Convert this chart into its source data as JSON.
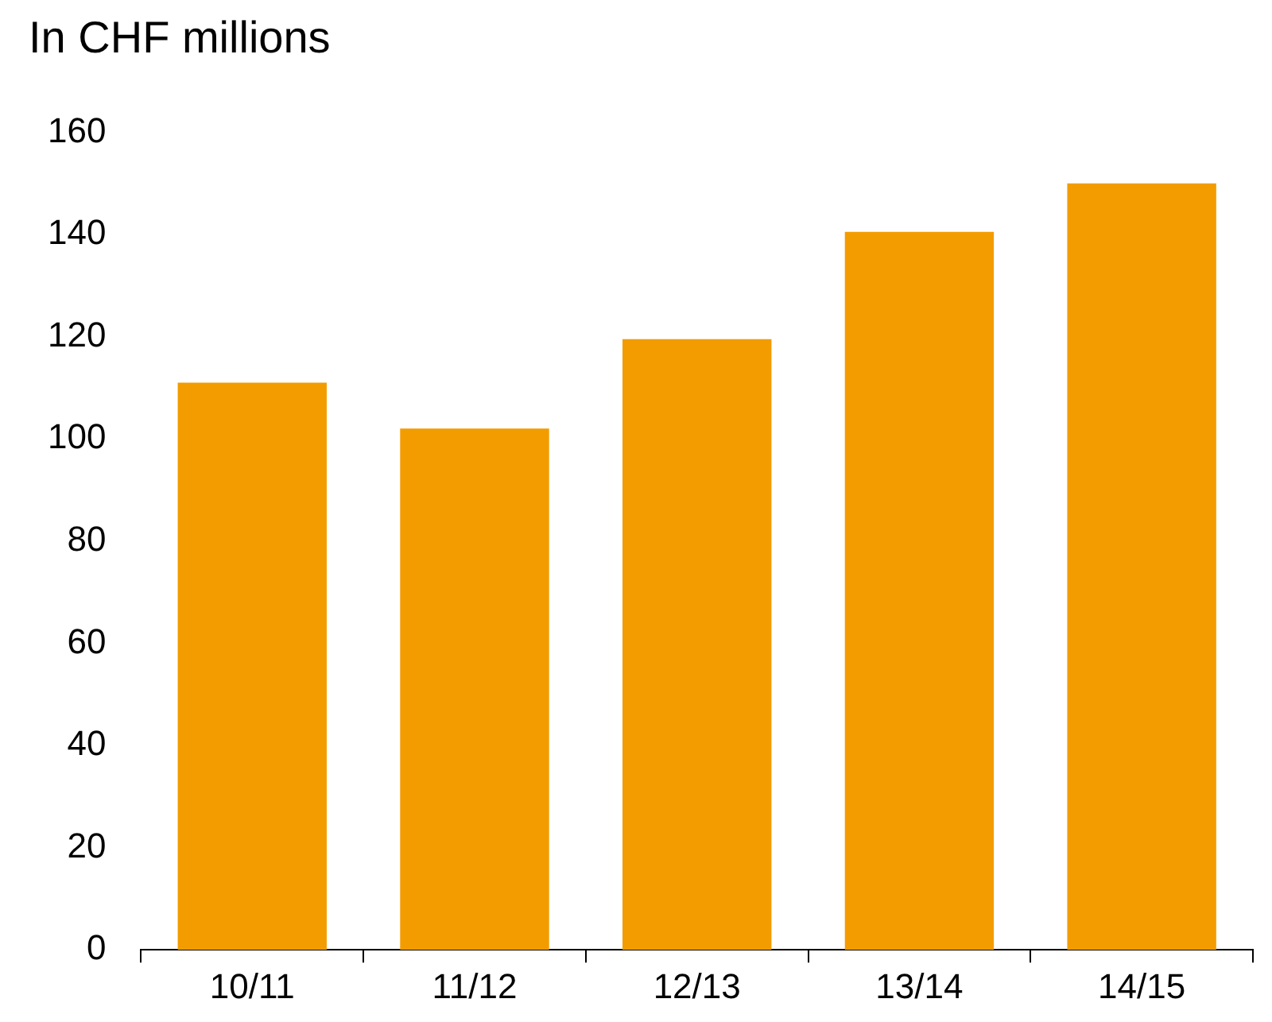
{
  "chart_data": {
    "type": "bar",
    "ylabel": "In CHF millions",
    "categories": [
      "10/11",
      "11/12",
      "12/13",
      "13/14",
      "14/15"
    ],
    "values": [
      111,
      102,
      119.5,
      140.5,
      150
    ],
    "color": "#f39c00",
    "ylim": [
      0,
      160
    ],
    "yticks": [
      0,
      20,
      40,
      60,
      80,
      100,
      120,
      140,
      160
    ],
    "grid": false,
    "legend": false
  }
}
